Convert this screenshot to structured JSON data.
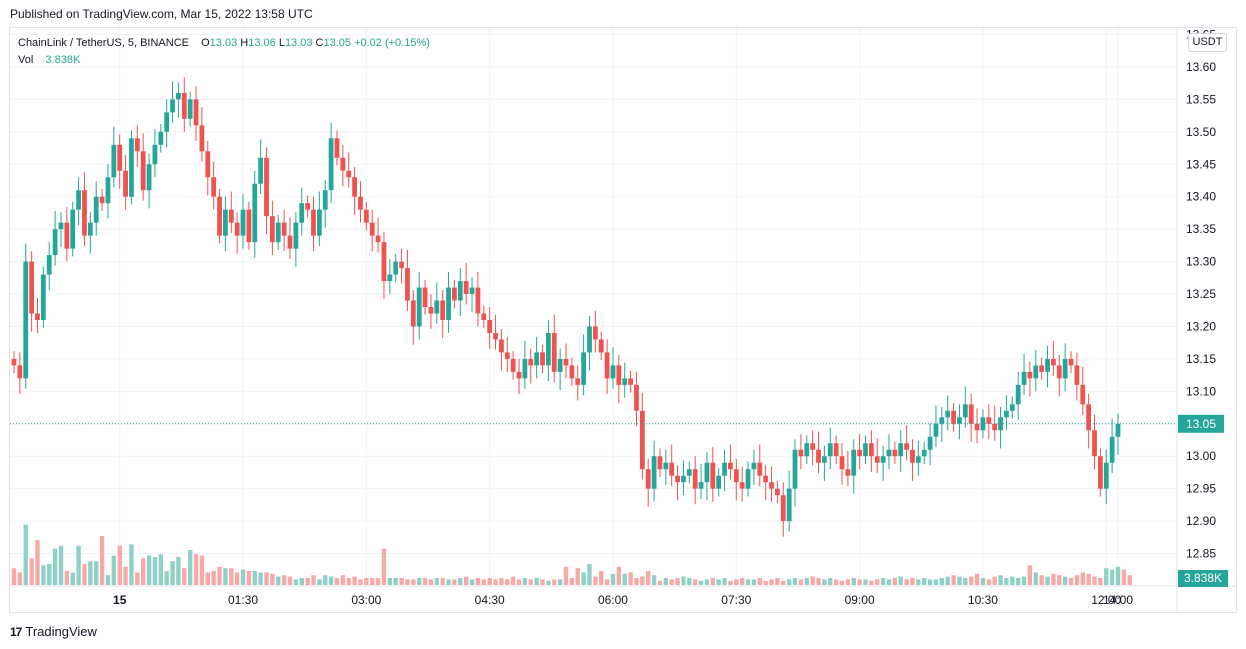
{
  "published": "Published on TradingView.com, Mar 15, 2022 13:58 UTC",
  "legend": {
    "symbol": "ChainLink / TetherUS, 5, BINANCE",
    "o_label": "O",
    "o_value": "13.03",
    "h_label": "H",
    "h_value": "13.06",
    "l_label": "L",
    "l_value": "13.03",
    "c_label": "C",
    "c_value": "13.05",
    "change": "+0.02 (+0.15%)",
    "vol_label": "Vol",
    "vol_value": "3.838K"
  },
  "currency": "USDT",
  "last_price_label": "13.05",
  "last_volume_label": "3.838K",
  "footer_brand": "TradingView",
  "footer_logo": "17",
  "colors": {
    "up": "#26a69a",
    "down": "#ef5350",
    "up_vol": "#8fd1c8",
    "down_vol": "#f7a9a7",
    "grid": "#f0f3fa"
  },
  "chart_data": {
    "type": "candlestick",
    "interval": "5m",
    "y_ticks": [
      "12.85",
      "12.90",
      "12.95",
      "13.00",
      "13.05",
      "13.10",
      "13.15",
      "13.20",
      "13.25",
      "13.30",
      "13.35",
      "13.40",
      "13.45",
      "13.50",
      "13.55",
      "13.60",
      "13.65"
    ],
    "ylim": [
      12.8,
      13.66
    ],
    "x_ticks": [
      "15",
      "01:30",
      "03:00",
      "04:30",
      "06:00",
      "07:30",
      "09:00",
      "10:30",
      "12:00",
      "14:00"
    ],
    "last_price": 13.05,
    "close": [
      13.14,
      13.12,
      13.3,
      13.22,
      13.21,
      13.28,
      13.31,
      13.35,
      13.36,
      13.32,
      13.38,
      13.41,
      13.34,
      13.36,
      13.4,
      13.39,
      13.43,
      13.48,
      13.44,
      13.4,
      13.49,
      13.47,
      13.41,
      13.45,
      13.48,
      13.5,
      13.53,
      13.55,
      13.56,
      13.52,
      13.55,
      13.51,
      13.47,
      13.43,
      13.4,
      13.34,
      13.38,
      13.36,
      13.34,
      13.38,
      13.33,
      13.42,
      13.46,
      13.37,
      13.33,
      13.36,
      13.34,
      13.32,
      13.36,
      13.39,
      13.38,
      13.34,
      13.38,
      13.41,
      13.49,
      13.46,
      13.44,
      13.43,
      13.4,
      13.38,
      13.36,
      13.34,
      13.33,
      13.27,
      13.28,
      13.3,
      13.29,
      13.24,
      13.2,
      13.26,
      13.23,
      13.22,
      13.24,
      13.21,
      13.26,
      13.24,
      13.27,
      13.25,
      13.26,
      13.22,
      13.21,
      13.19,
      13.18,
      13.16,
      13.15,
      13.13,
      13.12,
      13.15,
      13.14,
      13.16,
      13.14,
      13.19,
      13.13,
      13.15,
      13.14,
      13.12,
      13.11,
      13.16,
      13.2,
      13.18,
      13.16,
      13.12,
      13.14,
      13.11,
      13.12,
      13.11,
      13.07,
      12.98,
      12.95,
      13.0,
      12.98,
      12.99,
      12.97,
      12.96,
      12.97,
      12.98,
      12.95,
      12.96,
      12.99,
      12.95,
      12.97,
      12.99,
      12.98,
      12.96,
      12.95,
      12.98,
      12.99,
      12.97,
      12.96,
      12.95,
      12.94,
      12.9,
      12.95,
      13.01,
      13.0,
      13.02,
      13.01,
      12.99,
      13.0,
      13.02,
      13.0,
      12.98,
      12.97,
      13.01,
      13.0,
      13.02,
      13.0,
      12.99,
      13.0,
      13.01,
      13.0,
      13.02,
      13.01,
      12.99,
      13.0,
      13.01,
      13.03,
      13.05,
      13.06,
      13.07,
      13.05,
      13.06,
      13.08,
      13.05,
      13.04,
      13.06,
      13.05,
      13.04,
      13.06,
      13.07,
      13.08,
      13.11,
      13.13,
      13.12,
      13.14,
      13.13,
      13.15,
      13.14,
      13.12,
      13.15,
      13.14,
      13.11,
      13.08,
      13.04,
      13.0,
      12.95,
      12.99,
      13.03,
      13.05
    ],
    "volume_rel": [
      0.12,
      0.09,
      0.43,
      0.19,
      0.32,
      0.14,
      0.15,
      0.26,
      0.28,
      0.1,
      0.09,
      0.28,
      0.15,
      0.17,
      0.17,
      0.35,
      0.07,
      0.21,
      0.28,
      0.13,
      0.29,
      0.09,
      0.19,
      0.21,
      0.2,
      0.22,
      0.1,
      0.17,
      0.2,
      0.12,
      0.25,
      0.22,
      0.21,
      0.09,
      0.1,
      0.13,
      0.12,
      0.12,
      0.09,
      0.11,
      0.1,
      0.1,
      0.09,
      0.09,
      0.08,
      0.06,
      0.07,
      0.06,
      0.04,
      0.05,
      0.05,
      0.07,
      0.04,
      0.07,
      0.06,
      0.05,
      0.07,
      0.05,
      0.06,
      0.04,
      0.05,
      0.05,
      0.05,
      0.26,
      0.05,
      0.05,
      0.05,
      0.04,
      0.04,
      0.05,
      0.05,
      0.04,
      0.05,
      0.05,
      0.04,
      0.04,
      0.05,
      0.06,
      0.04,
      0.05,
      0.04,
      0.05,
      0.04,
      0.05,
      0.04,
      0.06,
      0.04,
      0.05,
      0.04,
      0.05,
      0.04,
      0.03,
      0.04,
      0.04,
      0.13,
      0.05,
      0.12,
      0.09,
      0.15,
      0.06,
      0.1,
      0.04,
      0.08,
      0.13,
      0.08,
      0.09,
      0.05,
      0.06,
      0.1,
      0.07,
      0.03,
      0.05,
      0.04,
      0.05,
      0.06,
      0.05,
      0.04,
      0.03,
      0.04,
      0.05,
      0.04,
      0.05,
      0.03,
      0.04,
      0.05,
      0.04,
      0.04,
      0.05,
      0.03,
      0.04,
      0.05,
      0.03,
      0.04,
      0.05,
      0.04,
      0.05,
      0.06,
      0.05,
      0.04,
      0.05,
      0.04,
      0.03,
      0.04,
      0.05,
      0.04,
      0.04,
      0.03,
      0.04,
      0.05,
      0.04,
      0.05,
      0.06,
      0.04,
      0.05,
      0.04,
      0.05,
      0.04,
      0.04,
      0.05,
      0.06,
      0.07,
      0.06,
      0.05,
      0.06,
      0.08,
      0.05,
      0.04,
      0.06,
      0.07,
      0.05,
      0.06,
      0.05,
      0.06,
      0.14,
      0.09,
      0.07,
      0.06,
      0.08,
      0.07,
      0.06,
      0.05,
      0.07,
      0.09,
      0.08,
      0.06,
      0.05,
      0.12,
      0.11,
      0.13,
      0.11,
      0.07
    ]
  }
}
